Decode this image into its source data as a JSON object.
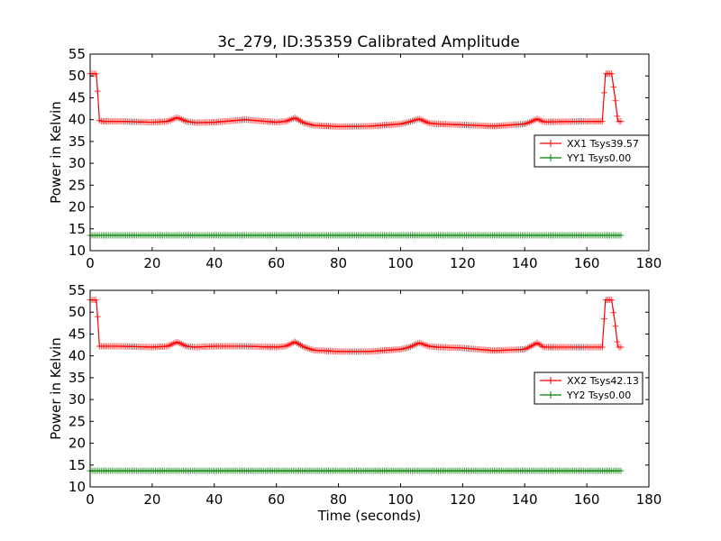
{
  "figure_title": "3c_279, ID:35359 Calibrated Amplitude",
  "colors": {
    "xx": "#ff0000",
    "yy": "#008000",
    "axes": "#000000"
  },
  "chart_data": [
    {
      "type": "line",
      "title": "3c_279, ID:35359 Calibrated Amplitude",
      "xlabel": "",
      "ylabel": "Power in Kelvin",
      "xlim": [
        0,
        180
      ],
      "ylim": [
        10,
        55
      ],
      "xticks": [
        0,
        20,
        40,
        60,
        80,
        100,
        120,
        140,
        160,
        180
      ],
      "yticks": [
        10,
        15,
        20,
        25,
        30,
        35,
        40,
        45,
        50,
        55
      ],
      "grid": false,
      "legend_position": "right",
      "series": [
        {
          "name": "XX1 Tsys39.57",
          "color": "#ff0000",
          "marker": "+",
          "x": [
            0,
            2,
            2.5,
            3,
            4,
            10,
            20,
            25,
            28,
            31,
            34,
            40,
            50,
            60,
            63,
            66,
            69,
            72,
            80,
            90,
            100,
            103,
            106,
            109,
            112,
            120,
            130,
            140,
            142,
            144,
            146,
            148,
            160,
            165,
            166,
            168,
            169,
            170,
            171
          ],
          "y": [
            50.5,
            50.5,
            45.5,
            39.8,
            39.6,
            39.6,
            39.4,
            39.6,
            40.5,
            39.6,
            39.3,
            39.4,
            40.0,
            39.4,
            39.6,
            40.4,
            39.2,
            38.7,
            38.4,
            38.5,
            39.0,
            39.5,
            40.2,
            39.2,
            39.0,
            38.8,
            38.5,
            39.0,
            39.5,
            40.2,
            39.5,
            39.5,
            39.6,
            39.6,
            50.5,
            50.5,
            45.5,
            39.6,
            39.6
          ]
        },
        {
          "name": "YY1 Tsys0.00",
          "color": "#008000",
          "marker": "+",
          "x": [
            0,
            20,
            40,
            60,
            80,
            100,
            120,
            140,
            160,
            171
          ],
          "y": [
            13.5,
            13.5,
            13.5,
            13.5,
            13.5,
            13.5,
            13.5,
            13.5,
            13.5,
            13.5
          ]
        }
      ]
    },
    {
      "type": "line",
      "title": "",
      "xlabel": "Time (seconds)",
      "ylabel": "Power in Kelvin",
      "xlim": [
        0,
        180
      ],
      "ylim": [
        10,
        55
      ],
      "xticks": [
        0,
        20,
        40,
        60,
        80,
        100,
        120,
        140,
        160,
        180
      ],
      "yticks": [
        10,
        15,
        20,
        25,
        30,
        35,
        40,
        45,
        50,
        55
      ],
      "grid": false,
      "legend_position": "right",
      "series": [
        {
          "name": "XX2 Tsys42.13",
          "color": "#ff0000",
          "marker": "+",
          "x": [
            0,
            2,
            2.5,
            3,
            4,
            10,
            20,
            25,
            28,
            31,
            34,
            40,
            50,
            60,
            63,
            66,
            69,
            72,
            80,
            90,
            100,
            103,
            106,
            109,
            112,
            120,
            130,
            140,
            142,
            144,
            146,
            148,
            160,
            165,
            166,
            168,
            169,
            170,
            171
          ],
          "y": [
            52.8,
            52.8,
            48.0,
            42.2,
            42.2,
            42.2,
            42.0,
            42.2,
            43.2,
            42.2,
            42.0,
            42.2,
            42.2,
            42.0,
            42.2,
            43.2,
            42.0,
            41.3,
            41.0,
            41.0,
            41.5,
            42.0,
            43.0,
            42.2,
            42.0,
            41.8,
            41.2,
            41.5,
            42.2,
            43.0,
            42.0,
            42.0,
            42.0,
            42.0,
            52.8,
            52.8,
            48.0,
            42.0,
            42.0
          ]
        },
        {
          "name": "YY2 Tsys0.00",
          "color": "#008000",
          "marker": "+",
          "x": [
            0,
            20,
            40,
            60,
            80,
            100,
            120,
            140,
            160,
            171
          ],
          "y": [
            13.7,
            13.7,
            13.7,
            13.7,
            13.7,
            13.7,
            13.7,
            13.7,
            13.7,
            13.7
          ]
        }
      ]
    }
  ]
}
